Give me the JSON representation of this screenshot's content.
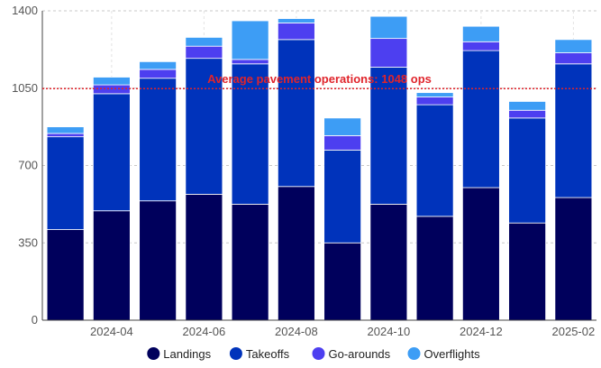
{
  "chart_data": {
    "type": "bar",
    "stacked": true,
    "categories": [
      "2024-03",
      "2024-04",
      "2024-05",
      "2024-06",
      "2024-07",
      "2024-08",
      "2024-09",
      "2024-10",
      "2024-11",
      "2024-12",
      "2025-01",
      "2025-02"
    ],
    "x_tick_labels": [
      "2024-04",
      "2024-06",
      "2024-08",
      "2024-10",
      "2024-12",
      "2025-02"
    ],
    "series": [
      {
        "name": "Landings",
        "color": "#00005c",
        "values": [
          410,
          495,
          540,
          570,
          525,
          605,
          350,
          525,
          470,
          600,
          440,
          555
        ]
      },
      {
        "name": "Takeoffs",
        "color": "#0033bb",
        "values": [
          420,
          530,
          555,
          615,
          635,
          665,
          420,
          620,
          505,
          620,
          475,
          605
        ]
      },
      {
        "name": "Go-arounds",
        "color": "#4d3ff0",
        "values": [
          15,
          40,
          40,
          55,
          20,
          75,
          65,
          130,
          35,
          40,
          35,
          50
        ]
      },
      {
        "name": "Overflights",
        "color": "#3d9df5",
        "values": [
          30,
          35,
          35,
          40,
          175,
          20,
          80,
          100,
          20,
          70,
          40,
          60
        ]
      }
    ],
    "ylim": [
      0,
      1400
    ],
    "y_ticks": [
      0,
      350,
      700,
      1050,
      1400
    ],
    "grid": true,
    "legend_position": "bottom",
    "reference_line": {
      "value": 1048,
      "label": "Average pavement operations: 1048 ops",
      "color": "#e0242b"
    }
  }
}
